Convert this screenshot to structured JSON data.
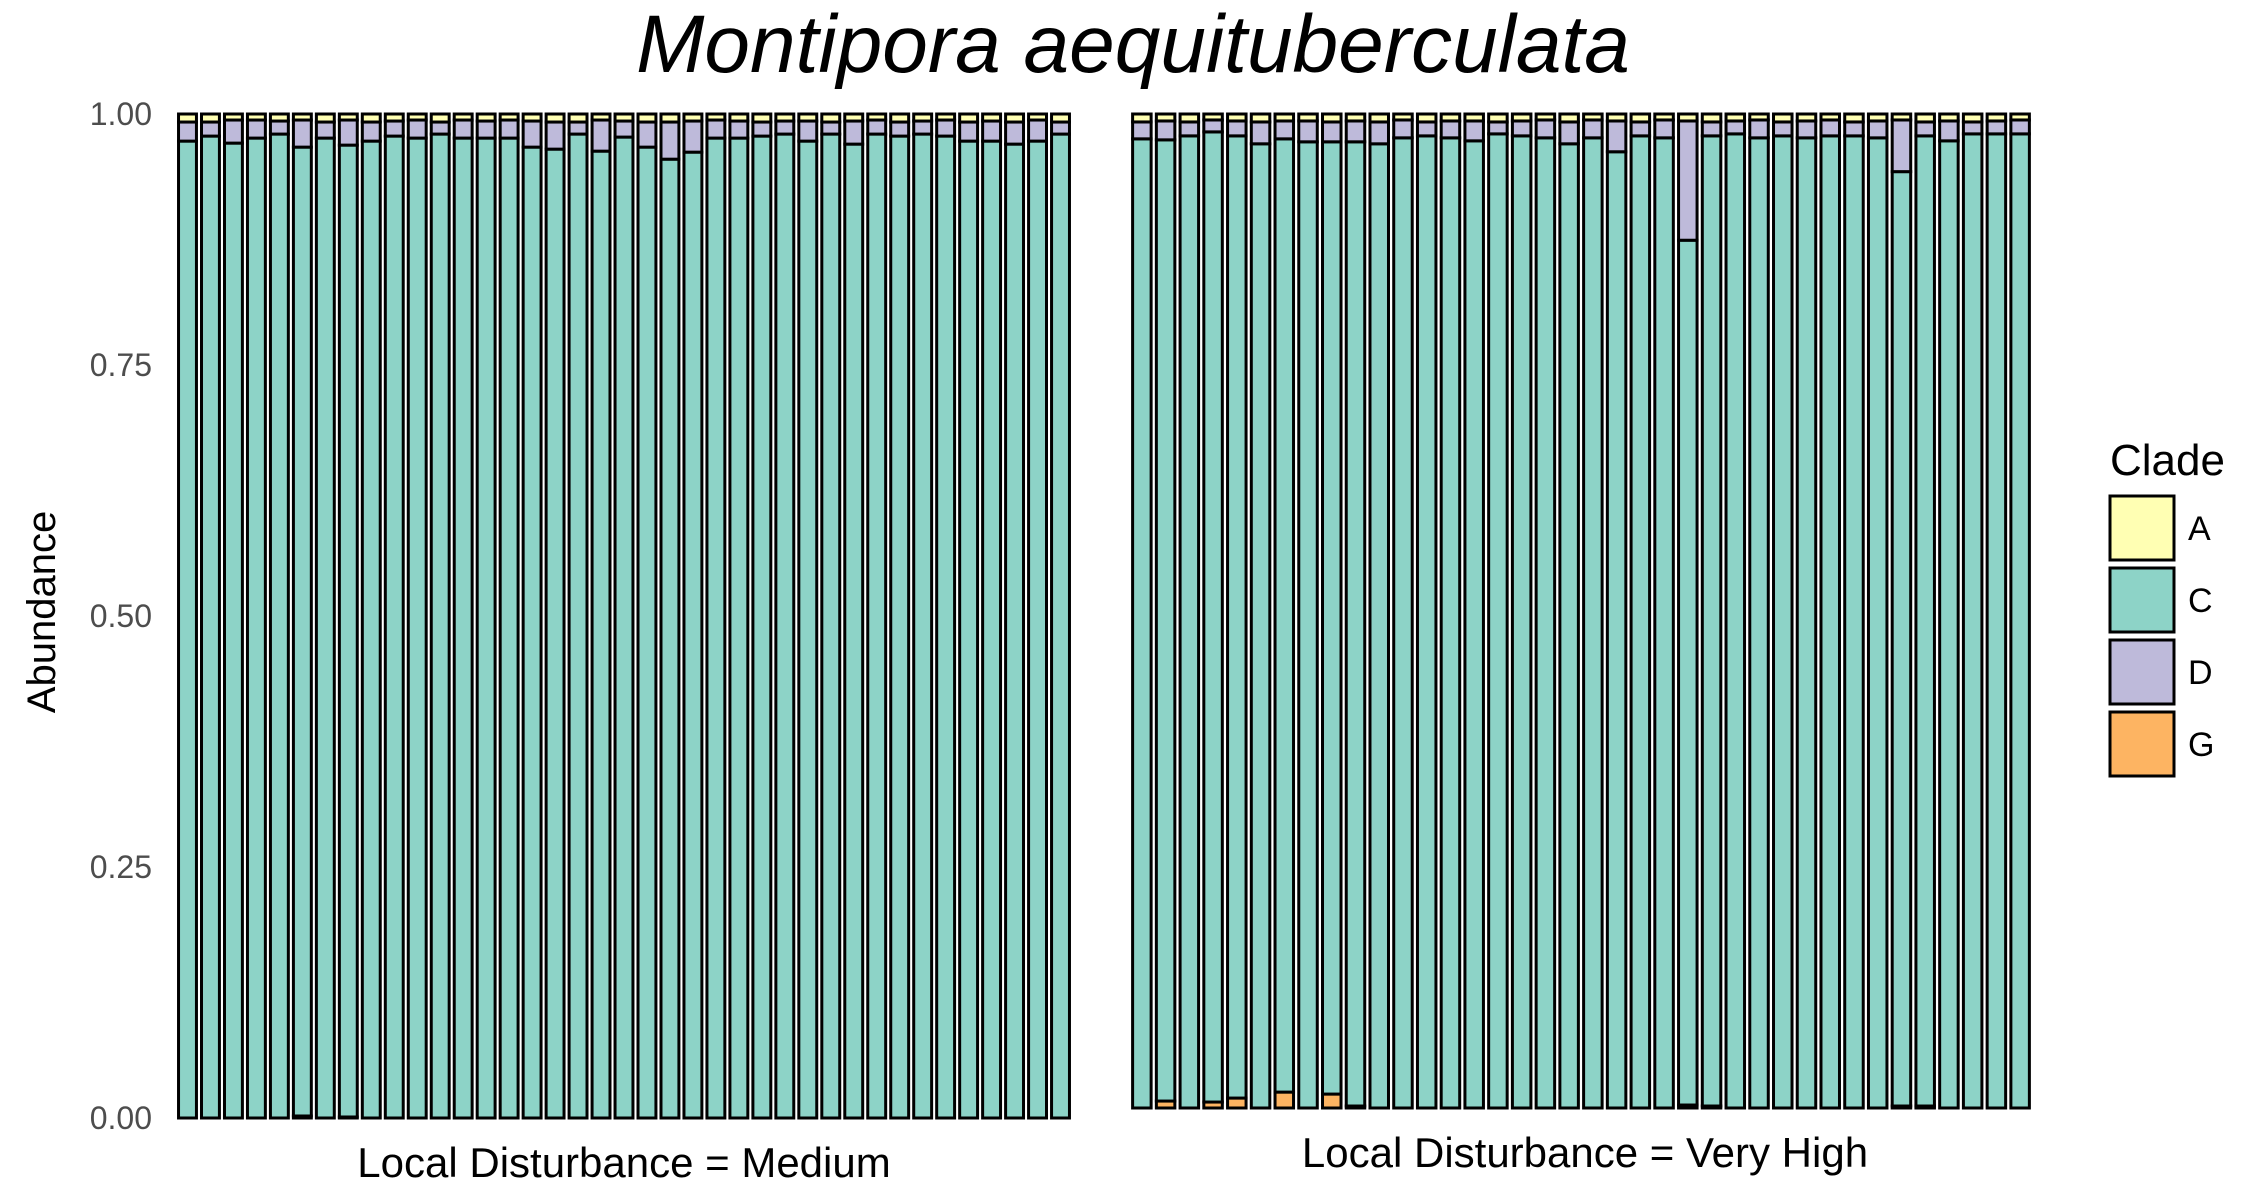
{
  "chart_data": {
    "type": "bar",
    "stacked": true,
    "title": "Montipora aequituberculata",
    "ylabel": "Abundance",
    "xlabel": "",
    "ylim": [
      0,
      1
    ],
    "y_ticks": [
      "0.00",
      "0.25",
      "0.50",
      "0.75",
      "1.00"
    ],
    "grid": false,
    "legend": {
      "title": "Clade",
      "position": "right",
      "items": [
        {
          "name": "A",
          "color": "#ffffb3"
        },
        {
          "name": "C",
          "color": "#8dd3c7"
        },
        {
          "name": "D",
          "color": "#bebada"
        },
        {
          "name": "G",
          "color": "#fdb462"
        }
      ]
    },
    "stack_order_bottom_to_top": [
      "G",
      "C",
      "D",
      "A"
    ],
    "panels": [
      {
        "label": "Local Disturbance = Medium",
        "bars": [
          {
            "G": 0,
            "C": 0.973,
            "D": 0.019,
            "A": 0.008
          },
          {
            "G": 0,
            "C": 0.978,
            "D": 0.014,
            "A": 0.008
          },
          {
            "G": 0,
            "C": 0.971,
            "D": 0.023,
            "A": 0.006
          },
          {
            "G": 0,
            "C": 0.976,
            "D": 0.018,
            "A": 0.006
          },
          {
            "G": 0,
            "C": 0.98,
            "D": 0.013,
            "A": 0.007
          },
          {
            "G": 0.002,
            "C": 0.965,
            "D": 0.027,
            "A": 0.006
          },
          {
            "G": 0,
            "C": 0.976,
            "D": 0.016,
            "A": 0.008
          },
          {
            "G": 0.001,
            "C": 0.968,
            "D": 0.025,
            "A": 0.006
          },
          {
            "G": 0,
            "C": 0.973,
            "D": 0.019,
            "A": 0.008
          },
          {
            "G": 0,
            "C": 0.978,
            "D": 0.015,
            "A": 0.007
          },
          {
            "G": 0,
            "C": 0.976,
            "D": 0.018,
            "A": 0.006
          },
          {
            "G": 0,
            "C": 0.98,
            "D": 0.012,
            "A": 0.008
          },
          {
            "G": 0,
            "C": 0.976,
            "D": 0.018,
            "A": 0.006
          },
          {
            "G": 0,
            "C": 0.976,
            "D": 0.017,
            "A": 0.007
          },
          {
            "G": 0,
            "C": 0.976,
            "D": 0.018,
            "A": 0.006
          },
          {
            "G": 0,
            "C": 0.967,
            "D": 0.026,
            "A": 0.007
          },
          {
            "G": 0,
            "C": 0.965,
            "D": 0.027,
            "A": 0.008
          },
          {
            "G": 0,
            "C": 0.98,
            "D": 0.012,
            "A": 0.008
          },
          {
            "G": 0,
            "C": 0.963,
            "D": 0.031,
            "A": 0.006
          },
          {
            "G": 0,
            "C": 0.977,
            "D": 0.016,
            "A": 0.007
          },
          {
            "G": 0,
            "C": 0.967,
            "D": 0.025,
            "A": 0.008
          },
          {
            "G": 0,
            "C": 0.955,
            "D": 0.037,
            "A": 0.008
          },
          {
            "G": 0,
            "C": 0.962,
            "D": 0.031,
            "A": 0.007
          },
          {
            "G": 0,
            "C": 0.976,
            "D": 0.018,
            "A": 0.006
          },
          {
            "G": 0,
            "C": 0.976,
            "D": 0.017,
            "A": 0.007
          },
          {
            "G": 0,
            "C": 0.978,
            "D": 0.014,
            "A": 0.008
          },
          {
            "G": 0,
            "C": 0.98,
            "D": 0.013,
            "A": 0.007
          },
          {
            "G": 0,
            "C": 0.973,
            "D": 0.02,
            "A": 0.007
          },
          {
            "G": 0,
            "C": 0.98,
            "D": 0.012,
            "A": 0.008
          },
          {
            "G": 0,
            "C": 0.97,
            "D": 0.023,
            "A": 0.007
          },
          {
            "G": 0,
            "C": 0.98,
            "D": 0.014,
            "A": 0.006
          },
          {
            "G": 0,
            "C": 0.978,
            "D": 0.014,
            "A": 0.008
          },
          {
            "G": 0,
            "C": 0.98,
            "D": 0.013,
            "A": 0.007
          },
          {
            "G": 0,
            "C": 0.978,
            "D": 0.016,
            "A": 0.006
          },
          {
            "G": 0,
            "C": 0.973,
            "D": 0.019,
            "A": 0.008
          },
          {
            "G": 0,
            "C": 0.973,
            "D": 0.02,
            "A": 0.007
          },
          {
            "G": 0,
            "C": 0.97,
            "D": 0.022,
            "A": 0.008
          },
          {
            "G": 0,
            "C": 0.973,
            "D": 0.021,
            "A": 0.006
          },
          {
            "G": 0,
            "C": 0.98,
            "D": 0.012,
            "A": 0.008
          }
        ]
      },
      {
        "label": "Local Disturbance = Very High",
        "bars": [
          {
            "G": 0,
            "C": 0.975,
            "D": 0.017,
            "A": 0.008
          },
          {
            "G": 0.007,
            "C": 0.967,
            "D": 0.019,
            "A": 0.007
          },
          {
            "G": 0,
            "C": 0.978,
            "D": 0.014,
            "A": 0.008
          },
          {
            "G": 0.006,
            "C": 0.976,
            "D": 0.012,
            "A": 0.006
          },
          {
            "G": 0.01,
            "C": 0.968,
            "D": 0.015,
            "A": 0.007
          },
          {
            "G": 0,
            "C": 0.97,
            "D": 0.022,
            "A": 0.008
          },
          {
            "G": 0.016,
            "C": 0.959,
            "D": 0.018,
            "A": 0.007
          },
          {
            "G": 0,
            "C": 0.972,
            "D": 0.021,
            "A": 0.007
          },
          {
            "G": 0.014,
            "C": 0.958,
            "D": 0.02,
            "A": 0.008
          },
          {
            "G": 0.002,
            "C": 0.97,
            "D": 0.021,
            "A": 0.007
          },
          {
            "G": 0,
            "C": 0.97,
            "D": 0.022,
            "A": 0.008
          },
          {
            "G": 0,
            "C": 0.976,
            "D": 0.018,
            "A": 0.006
          },
          {
            "G": 0,
            "C": 0.978,
            "D": 0.014,
            "A": 0.008
          },
          {
            "G": 0,
            "C": 0.976,
            "D": 0.017,
            "A": 0.007
          },
          {
            "G": 0,
            "C": 0.973,
            "D": 0.02,
            "A": 0.007
          },
          {
            "G": 0,
            "C": 0.98,
            "D": 0.012,
            "A": 0.008
          },
          {
            "G": 0,
            "C": 0.978,
            "D": 0.015,
            "A": 0.007
          },
          {
            "G": 0,
            "C": 0.976,
            "D": 0.018,
            "A": 0.006
          },
          {
            "G": 0,
            "C": 0.97,
            "D": 0.022,
            "A": 0.008
          },
          {
            "G": 0,
            "C": 0.976,
            "D": 0.018,
            "A": 0.006
          },
          {
            "G": 0,
            "C": 0.962,
            "D": 0.031,
            "A": 0.007
          },
          {
            "G": 0,
            "C": 0.978,
            "D": 0.014,
            "A": 0.008
          },
          {
            "G": 0,
            "C": 0.976,
            "D": 0.018,
            "A": 0.006
          },
          {
            "G": 0.003,
            "C": 0.87,
            "D": 0.12,
            "A": 0.007
          },
          {
            "G": 0.002,
            "C": 0.976,
            "D": 0.014,
            "A": 0.008
          },
          {
            "G": 0,
            "C": 0.98,
            "D": 0.013,
            "A": 0.007
          },
          {
            "G": 0,
            "C": 0.976,
            "D": 0.018,
            "A": 0.006
          },
          {
            "G": 0,
            "C": 0.978,
            "D": 0.014,
            "A": 0.008
          },
          {
            "G": 0,
            "C": 0.976,
            "D": 0.017,
            "A": 0.007
          },
          {
            "G": 0,
            "C": 0.978,
            "D": 0.016,
            "A": 0.006
          },
          {
            "G": 0,
            "C": 0.978,
            "D": 0.014,
            "A": 0.008
          },
          {
            "G": 0,
            "C": 0.976,
            "D": 0.017,
            "A": 0.007
          },
          {
            "G": 0.002,
            "C": 0.94,
            "D": 0.052,
            "A": 0.006
          },
          {
            "G": 0.002,
            "C": 0.976,
            "D": 0.014,
            "A": 0.008
          },
          {
            "G": 0,
            "C": 0.973,
            "D": 0.02,
            "A": 0.007
          },
          {
            "G": 0,
            "C": 0.98,
            "D": 0.012,
            "A": 0.008
          },
          {
            "G": 0,
            "C": 0.98,
            "D": 0.013,
            "A": 0.007
          },
          {
            "G": 0,
            "C": 0.98,
            "D": 0.014,
            "A": 0.006
          }
        ]
      }
    ]
  }
}
